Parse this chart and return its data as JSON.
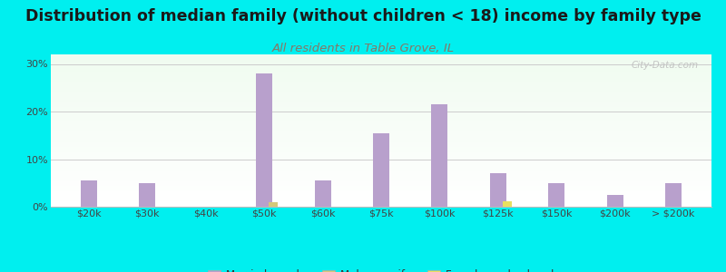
{
  "title": "Distribution of median family (without children < 18) income by family type",
  "subtitle": "All residents in Table Grove, IL",
  "background_color": "#00EFEF",
  "categories": [
    "$20k",
    "$30k",
    "$40k",
    "$50k",
    "$60k",
    "$75k",
    "$100k",
    "$125k",
    "$150k",
    "$200k",
    "> $200k"
  ],
  "married_couple": [
    5.5,
    5.0,
    0.0,
    28.0,
    5.5,
    15.5,
    21.5,
    7.0,
    5.0,
    2.5,
    5.0
  ],
  "male_no_wife": [
    0.0,
    0.0,
    0.0,
    1.0,
    0.0,
    0.0,
    0.0,
    0.0,
    0.0,
    0.0,
    0.0
  ],
  "female_no_husband": [
    0.0,
    0.0,
    0.0,
    0.0,
    0.0,
    0.0,
    0.0,
    1.2,
    0.0,
    0.0,
    0.0
  ],
  "married_color": "#b8a0cc",
  "male_color": "#d4c87a",
  "female_color": "#e8e060",
  "ylim": [
    0,
    32
  ],
  "yticks": [
    0,
    10,
    20,
    30
  ],
  "bar_width": 0.28,
  "watermark": "City-Data.com",
  "title_fontsize": 12.5,
  "subtitle_fontsize": 9.5,
  "axis_fontsize": 8,
  "legend_fontsize": 8.5
}
